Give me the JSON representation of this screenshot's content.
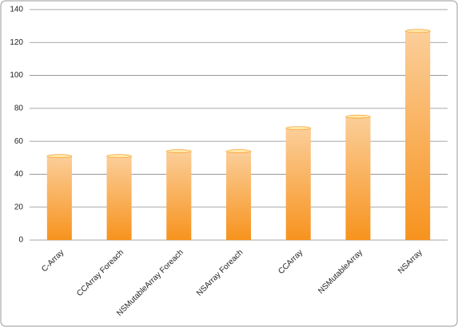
{
  "chart_data": {
    "type": "bar",
    "categories": [
      "C-Array",
      "CCArray Foreach",
      "NSMutableArray Foreach",
      "NSArray Foreach",
      "CCArray",
      "NSMutableArray",
      "NSArray"
    ],
    "values": [
      51,
      51,
      54,
      54,
      68,
      75,
      127
    ],
    "color": "#f7931e",
    "ylim": [
      0,
      140
    ],
    "yticks": [
      0,
      20,
      40,
      60,
      80,
      100,
      120,
      140
    ],
    "grid": true
  }
}
